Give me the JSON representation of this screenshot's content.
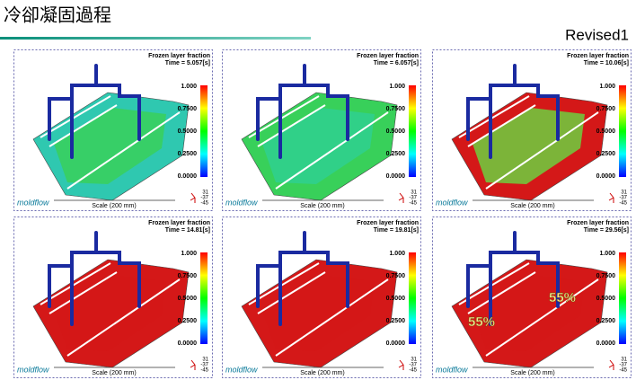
{
  "header": {
    "title": "冷卻凝固過程",
    "revision": "Revised1"
  },
  "panels": [
    {
      "label": "Frozen layer fraction",
      "time": "Time = 5.057[s]",
      "scale_ticks": [
        "1.000",
        "0.7500",
        "0.5000",
        "0.2500",
        "0.0000"
      ],
      "axes": [
        "31",
        "-37",
        "-45"
      ],
      "scale": "Scale (200 mm)",
      "logo": "moldflow"
    },
    {
      "label": "Frozen layer fraction",
      "time": "Time = 6.057[s]",
      "scale_ticks": [
        "1.000",
        "0.7500",
        "0.5000",
        "0.2500",
        "0.0000"
      ],
      "axes": [
        "31",
        "-37",
        "-45"
      ],
      "scale": "Scale (200 mm)",
      "logo": "moldflow"
    },
    {
      "label": "Frozen layer fraction",
      "time": "Time = 10.06[s]",
      "scale_ticks": [
        "1.000",
        "0.7500",
        "0.5000",
        "0.2500",
        "0.0000"
      ],
      "axes": [
        "31",
        "-37",
        "-45"
      ],
      "scale": "Scale (200 mm)",
      "logo": "moldflow"
    },
    {
      "label": "Frozen layer fraction",
      "time": "Time = 14.81[s]",
      "scale_ticks": [
        "1.000",
        "0.7500",
        "0.5000",
        "0.2500",
        "0.0000"
      ],
      "axes": [
        "31",
        "-37",
        "-45"
      ],
      "scale": "Scale (200 mm)",
      "logo": "moldflow"
    },
    {
      "label": "Frozen layer fraction",
      "time": "Time = 19.81[s]",
      "scale_ticks": [
        "1.000",
        "0.7500",
        "0.5000",
        "0.2500",
        "0.0000"
      ],
      "axes": [
        "31",
        "-37",
        "-45"
      ],
      "scale": "Scale (200 mm)",
      "logo": "moldflow"
    },
    {
      "label": "Frozen layer fraction",
      "time": "Time = 29.56[s]",
      "scale_ticks": [
        "1.000",
        "0.7500",
        "0.5000",
        "0.2500",
        "0.0000"
      ],
      "axes": [
        "31",
        "-37",
        "-45"
      ],
      "scale": "Scale (200 mm)",
      "logo": "moldflow",
      "annotations": [
        "55%",
        "55%"
      ]
    }
  ]
}
